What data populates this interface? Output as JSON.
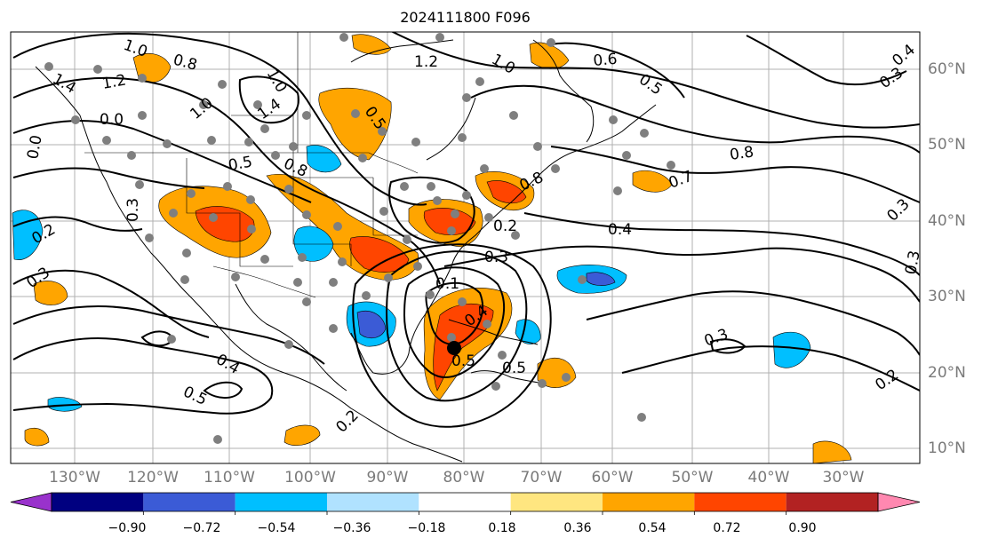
{
  "title": "2024111800 F096",
  "map": {
    "lon_labels": [
      "130°W",
      "120°W",
      "110°W",
      "100°W",
      "90°W",
      "80°W",
      "70°W",
      "60°W",
      "50°W",
      "40°W",
      "30°W"
    ],
    "lat_labels": [
      "60°N",
      "50°N",
      "40°N",
      "30°N",
      "20°N",
      "10°N"
    ],
    "contour_labels": [
      "1.0",
      "0.8",
      "1.4",
      "1.2",
      "1.0",
      "1.2",
      "1.0",
      "0.6",
      "0.5",
      "0.5",
      "0.8",
      "1.4",
      "1.0",
      "0.5",
      "0.8",
      "0.7",
      "0.8",
      "0.4",
      "0.3",
      "0.3",
      "0.3",
      "0.2",
      "0.3",
      "0.4",
      "0.5",
      "0.4",
      "0.3",
      "0.2",
      "0.3",
      "0.2",
      "0.4",
      "0.3",
      "0.2",
      "0.1",
      "0.0",
      "0.0",
      "0.5",
      "0.5"
    ],
    "grid_color": "#b0b0b0",
    "fill_colors": {
      "purple": "#9932cc",
      "navy": "#000080",
      "blue": "#3b5bd6",
      "cyan": "#00bfff",
      "light_cyan": "#b0e2ff",
      "yellow": "#ffe680",
      "orange": "#ffa500",
      "red_orange": "#ff4500",
      "dark_red": "#b22222",
      "pink": "#ff88b0"
    }
  },
  "colorbar": {
    "ticks": [
      "−0.90",
      "−0.72",
      "−0.54",
      "−0.36",
      "−0.18",
      "0.18",
      "0.36",
      "0.54",
      "0.72",
      "0.90"
    ],
    "colors": [
      "#9932cc",
      "#000080",
      "#3b5bd6",
      "#00bfff",
      "#b0e2ff",
      "#ffffff",
      "#ffe680",
      "#ffa500",
      "#ff4500",
      "#b22222",
      "#ff88b0"
    ]
  }
}
